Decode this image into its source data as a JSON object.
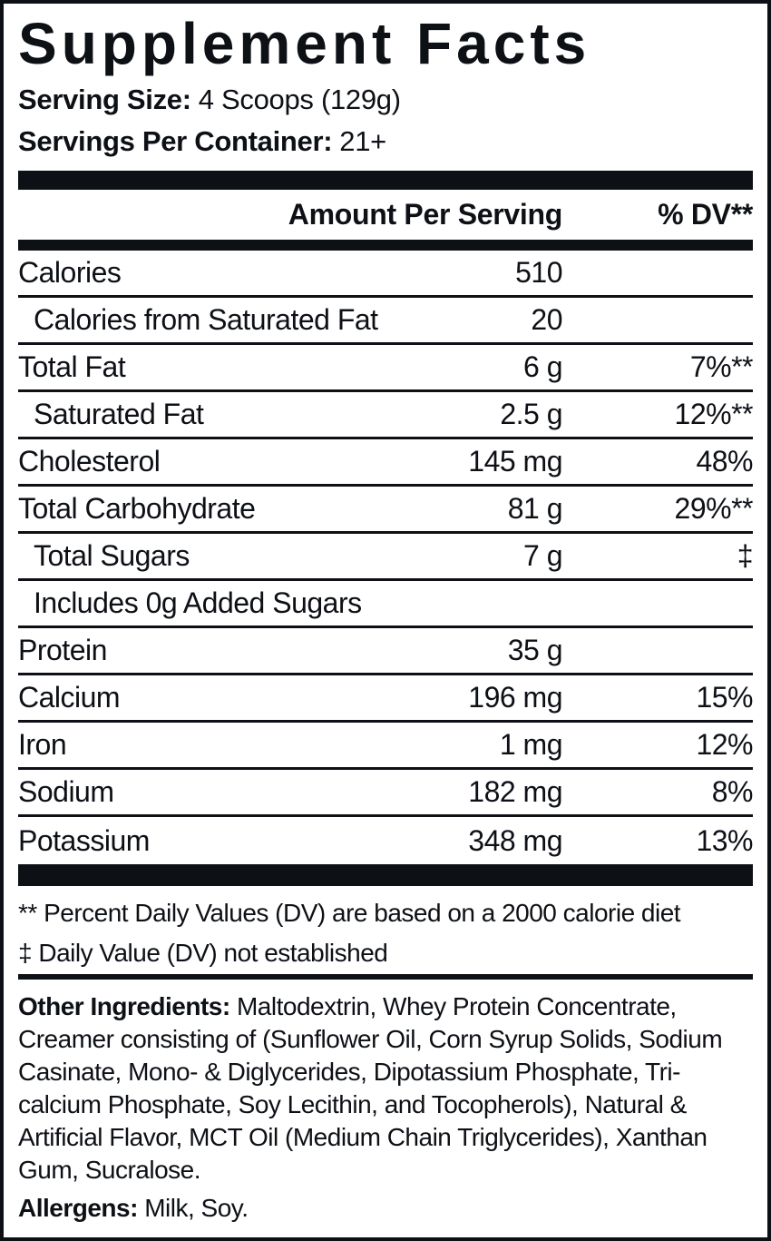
{
  "label": {
    "title": "Supplement Facts",
    "serving_size_label": "Serving Size:",
    "serving_size_value": "4 Scoops (129g)",
    "servings_per_container_label": "Servings Per Container:",
    "servings_per_container_value": "21+",
    "header": {
      "amount": "Amount Per Serving",
      "dv": "% DV**"
    },
    "rows": [
      {
        "name": "Calories",
        "amount": "510",
        "dv": "",
        "indent": true
      },
      {
        "name": "Calories from Saturated Fat",
        "amount": "20",
        "dv": "",
        "indent": true
      },
      {
        "name": "Total Fat",
        "amount": "6 g",
        "dv": "7%**",
        "indent": false
      },
      {
        "name": "Saturated Fat",
        "amount": "2.5 g",
        "dv": "12%**",
        "indent": true
      },
      {
        "name": "Cholesterol",
        "amount": "145 mg",
        "dv": "48%",
        "indent": false
      },
      {
        "name": "Total Carbohydrate",
        "amount": "81 g",
        "dv": "29%**",
        "indent": false
      },
      {
        "name": "Total Sugars",
        "amount": "7 g",
        "dv": "‡",
        "indent": true
      },
      {
        "name": "Includes 0g Added Sugars",
        "amount": "",
        "dv": "",
        "indent": true
      },
      {
        "name": "Protein",
        "amount": "35 g",
        "dv": "",
        "indent": false
      },
      {
        "name": "Calcium",
        "amount": "196 mg",
        "dv": "15%",
        "indent": false
      },
      {
        "name": "Iron",
        "amount": "1 mg",
        "dv": "12%",
        "indent": false
      },
      {
        "name": "Sodium",
        "amount": "182 mg",
        "dv": "8%",
        "indent": false
      },
      {
        "name": "Potassium",
        "amount": "348 mg",
        "dv": "13%",
        "indent": false
      }
    ],
    "footnotes": [
      "** Percent Daily Values (DV) are based on a 2000 calorie diet",
      "‡ Daily Value (DV) not established"
    ],
    "other_ingredients_label": "Other Ingredients:",
    "other_ingredients_text": " Maltodextrin, Whey Protein Concentrate, Creamer consisting of (Sunflower Oil, Corn Syrup Solids, Sodium Casinate, Mono- & Diglycerides, Dipotassium Phosphate, Tri-calcium Phosphate, Soy Lecithin, and Tocopherols), Natural & Artificial Flavor, MCT Oil (Medium Chain Triglycerides), Xanthan Gum, Sucralose.",
    "allergens_label": "Allergens:",
    "allergens_value": " Milk, Soy.",
    "colors": {
      "text": "#0d1015",
      "background": "#ffffff"
    }
  }
}
